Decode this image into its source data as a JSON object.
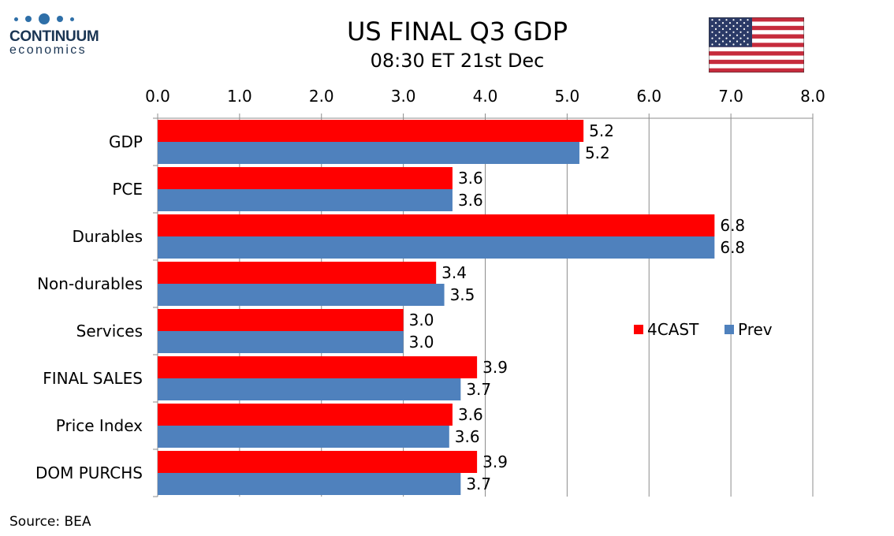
{
  "logo": {
    "name": "CONTINUUM",
    "tagline": "economics"
  },
  "header": {
    "title": "US FINAL Q3 GDP",
    "subtitle": "08:30 ET 21st Dec"
  },
  "footer": {
    "source": "Source: BEA"
  },
  "colors": {
    "forecast": "#ff0000",
    "previous": "#4f81bd",
    "logo": "#2e6fa8"
  },
  "chart_data": {
    "type": "bar",
    "orientation": "horizontal",
    "categories": [
      "GDP",
      "PCE",
      "Durables",
      "Non-durables",
      "Services",
      "FINAL SALES",
      "Price Index",
      "DOM PURCHS"
    ],
    "series": [
      {
        "name": "4CAST",
        "values": [
          5.2,
          3.6,
          6.8,
          3.4,
          3.0,
          3.9,
          3.6,
          3.9
        ],
        "labels": [
          "5.2",
          "3.6",
          "6.8",
          "3.4",
          "3.0",
          "3.9",
          "3.6",
          "3.9"
        ]
      },
      {
        "name": "Prev",
        "values": [
          5.15,
          3.6,
          6.8,
          3.5,
          3.0,
          3.7,
          3.56,
          3.7
        ],
        "labels": [
          "5.2",
          "3.6",
          "6.8",
          "3.5",
          "3.0",
          "3.7",
          "3.6",
          "3.7"
        ]
      }
    ],
    "xlim": [
      0,
      8
    ],
    "xticks": [
      "0.0",
      "1.0",
      "2.0",
      "3.0",
      "4.0",
      "5.0",
      "6.0",
      "7.0",
      "8.0"
    ],
    "axis_position": "top",
    "grid": true,
    "legend_position": "center-right"
  }
}
